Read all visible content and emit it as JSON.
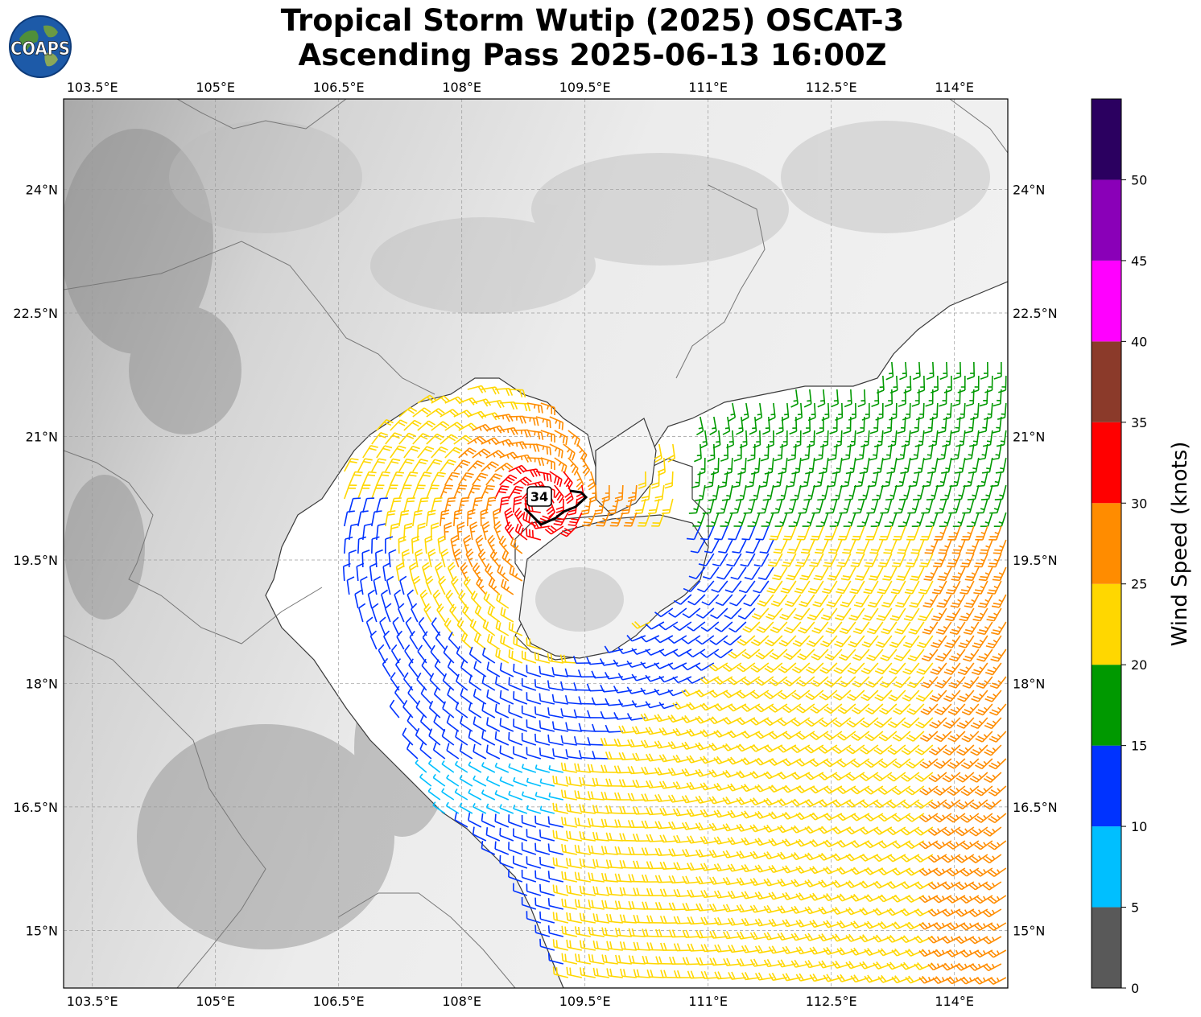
{
  "title": {
    "line1": "Tropical Storm Wutip (2025) OSCAT-3",
    "line2": "Ascending Pass 2025-06-13 16:00Z"
  },
  "logo": {
    "text": "COAPS",
    "icon": "globe-logo-icon"
  },
  "map": {
    "lon_range": [
      103.15,
      114.65
    ],
    "lat_range": [
      14.3,
      25.1
    ],
    "lon_ticks": [
      "103.5°E",
      "105°E",
      "106.5°E",
      "108°E",
      "109.5°E",
      "111°E",
      "112.5°E",
      "114°E"
    ],
    "lon_tick_values": [
      103.5,
      105,
      106.5,
      108,
      109.5,
      111,
      112.5,
      114
    ],
    "lat_ticks": [
      "15°N",
      "16.5°N",
      "18°N",
      "19.5°N",
      "21°N",
      "22.5°N",
      "24°N"
    ],
    "lat_tick_values": [
      15,
      16.5,
      18,
      19.5,
      21,
      22.5,
      24
    ],
    "gridlines": true,
    "background": "grayscale terrain",
    "center_label": "34",
    "storm_center": {
      "lon": 108.95,
      "lat": 20.15
    }
  },
  "colorbar": {
    "label": "Wind Speed (knots)",
    "ticks": [
      "0",
      "5",
      "10",
      "15",
      "20",
      "25",
      "30",
      "35",
      "40",
      "45",
      "50"
    ],
    "bins": [
      {
        "min": 0,
        "max": 5,
        "color": "#595959"
      },
      {
        "min": 5,
        "max": 10,
        "color": "#00bfff"
      },
      {
        "min": 10,
        "max": 15,
        "color": "#0033ff"
      },
      {
        "min": 15,
        "max": 20,
        "color": "#009900"
      },
      {
        "min": 20,
        "max": 25,
        "color": "#ffd700"
      },
      {
        "min": 25,
        "max": 30,
        "color": "#ff8c00"
      },
      {
        "min": 30,
        "max": 35,
        "color": "#ff0000"
      },
      {
        "min": 35,
        "max": 40,
        "color": "#8b3a2a"
      },
      {
        "min": 40,
        "max": 45,
        "color": "#ff00ff"
      },
      {
        "min": 45,
        "max": 50,
        "color": "#8a00b8"
      },
      {
        "min": 50,
        "max": 55,
        "color": "#2b0060"
      }
    ]
  }
}
